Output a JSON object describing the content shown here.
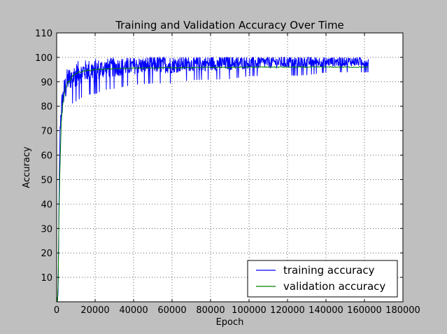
{
  "chart_data": {
    "type": "line",
    "title": "Training and Validation Accuracy Over Time",
    "xlabel": "Epoch",
    "ylabel": "Accuracy",
    "xlim": [
      0,
      180000
    ],
    "ylim": [
      0,
      110
    ],
    "xticks": [
      0,
      20000,
      40000,
      60000,
      80000,
      100000,
      120000,
      140000,
      160000,
      180000
    ],
    "xtick_labels": [
      "0",
      "20000",
      "40000",
      "60000",
      "80000",
      "100000",
      "120000",
      "140000",
      "160000",
      "180000"
    ],
    "yticks": [
      10,
      20,
      30,
      40,
      50,
      60,
      70,
      80,
      90,
      100,
      110
    ],
    "ytick_labels": [
      "10",
      "20",
      "30",
      "40",
      "50",
      "60",
      "70",
      "80",
      "90",
      "100",
      "110"
    ],
    "grid": true,
    "legend_position": "bottom-right",
    "series": [
      {
        "name": "training accuracy",
        "color": "#0000ff",
        "x": [
          0,
          400,
          800,
          1200,
          1600,
          2000,
          2500,
          3000,
          4000,
          5000,
          6000,
          8000,
          10000,
          12000,
          15000,
          20000,
          25000,
          30000,
          40000,
          50000,
          60000,
          70000,
          80000,
          90000,
          100000,
          110000,
          120000,
          130000,
          140000,
          150000,
          162000
        ],
        "y": [
          2,
          0,
          5,
          40,
          64,
          75,
          78,
          82,
          86,
          89,
          91,
          92,
          93,
          94,
          94.5,
          95,
          95.5,
          96,
          96.5,
          97,
          97,
          97.3,
          97.5,
          97.7,
          97.8,
          98,
          98,
          98.2,
          98.2,
          98.3,
          98.3
        ],
        "noise": [
          0,
          0,
          0,
          0,
          3,
          5,
          6,
          6,
          6,
          6,
          5,
          5,
          5,
          5,
          4.5,
          4.5,
          4,
          4,
          3.5,
          3.5,
          3.5,
          3,
          3,
          3,
          2.5,
          2.5,
          2.5,
          2.5,
          2,
          2,
          2
        ]
      },
      {
        "name": "validation accuracy",
        "color": "#008000",
        "x": [
          0,
          400,
          800,
          1200,
          1600,
          2000,
          2500,
          3000,
          4000,
          5000,
          6000,
          8000,
          10000,
          12000,
          15000,
          20000,
          25000,
          30000,
          40000,
          50000,
          60000,
          70000,
          80000,
          90000,
          100000,
          110000,
          120000,
          130000,
          140000,
          150000,
          162000
        ],
        "y": [
          2,
          0,
          8,
          35,
          52,
          62,
          75,
          80,
          85,
          88,
          90,
          92,
          93.5,
          94,
          94.5,
          95,
          95.2,
          95.4,
          95.6,
          95.7,
          95.8,
          95.8,
          95.9,
          95.9,
          96,
          96,
          96,
          96,
          96,
          96,
          96
        ],
        "noise": [
          0,
          0,
          0,
          0,
          1,
          1.5,
          1.2,
          1,
          0.8,
          0.6,
          0.5,
          0.4,
          0.3,
          0.3,
          0.25,
          0.25,
          0.2,
          0.2,
          0.2,
          0.2,
          0.2,
          0.2,
          0.2,
          0.2,
          0.2,
          0.2,
          0.2,
          0.2,
          0.2,
          0.2,
          0.2
        ]
      }
    ]
  }
}
